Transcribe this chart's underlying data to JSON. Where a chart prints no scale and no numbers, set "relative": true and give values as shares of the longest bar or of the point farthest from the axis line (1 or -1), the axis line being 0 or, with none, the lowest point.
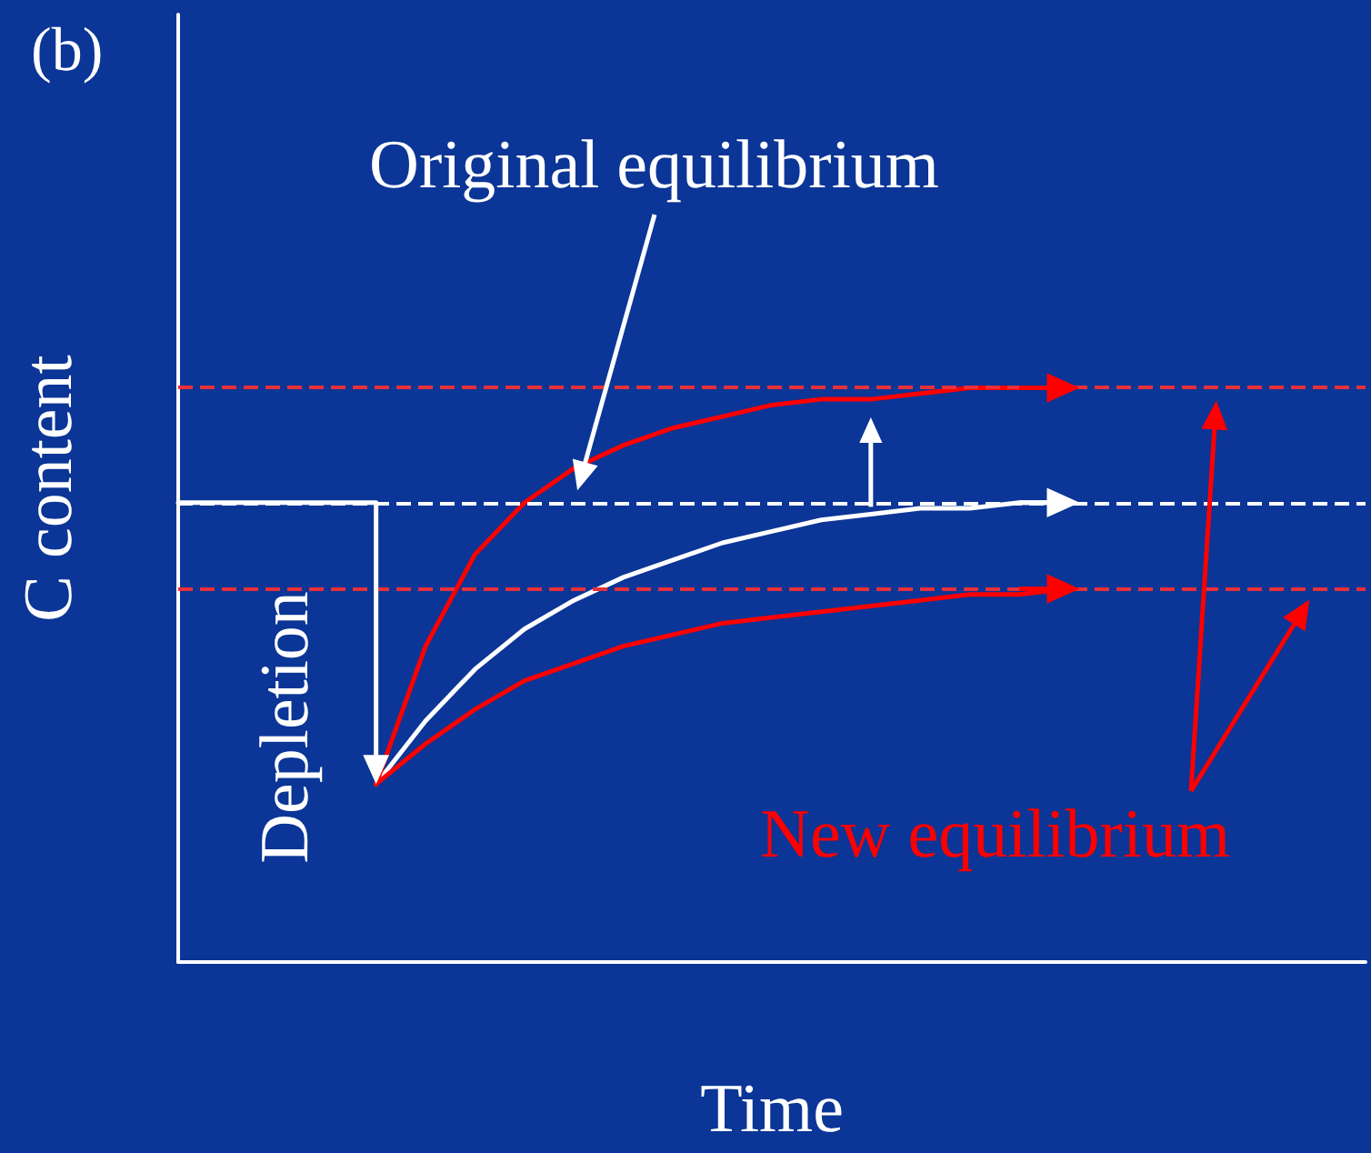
{
  "chart_data": {
    "type": "line",
    "title": "(b)",
    "xlabel": "Time",
    "ylabel": "C content",
    "relative": true,
    "categories": [
      null,
      null,
      null,
      null,
      null,
      null,
      null,
      null,
      null,
      null,
      null,
      null,
      null,
      null,
      null,
      null,
      null,
      null,
      null,
      null,
      null,
      null,
      null,
      null,
      null
    ],
    "series": [
      {
        "color": "#ffffff",
        "line_style": "solid",
        "values": [
          0.8,
          0.8,
          0.8,
          0.8,
          0.8,
          null,
          null,
          null,
          null,
          null,
          null,
          null,
          null,
          null,
          null,
          null,
          null,
          null,
          null,
          null,
          null,
          null,
          null,
          null,
          null
        ]
      },
      {
        "color": "#ffffff",
        "values": [
          null,
          null,
          null,
          null,
          0.31,
          0.42,
          0.51,
          0.58,
          0.63,
          0.67,
          0.7,
          0.73,
          0.75,
          0.77,
          0.78,
          0.79,
          0.79,
          0.8,
          0.8,
          null,
          null,
          null,
          null,
          null,
          null
        ]
      },
      {
        "color": "#ff0000",
        "values": [
          null,
          null,
          null,
          null,
          0.31,
          0.55,
          0.71,
          0.8,
          0.86,
          0.9,
          0.93,
          0.95,
          0.97,
          0.98,
          0.98,
          0.99,
          1,
          1,
          1,
          null,
          null,
          null,
          null,
          null,
          null
        ]
      },
      {
        "color": "#ff0000",
        "values": [
          null,
          null,
          null,
          null,
          0.31,
          0.38,
          0.44,
          0.49,
          0.52,
          0.55,
          0.57,
          0.59,
          0.6,
          0.61,
          0.62,
          0.63,
          0.64,
          0.64,
          0.65,
          null,
          null,
          null,
          null,
          null,
          null
        ]
      }
    ],
    "ref_lines": [
      {
        "axis": "y",
        "value": 0.8,
        "color": "#ffffff",
        "line_style": "dashed"
      },
      {
        "axis": "y",
        "value": 1,
        "color": "#e8303a",
        "line_style": "dashed"
      },
      {
        "axis": "y",
        "value": 0.65,
        "color": "#e8303a",
        "line_style": "dashed"
      }
    ],
    "annotations": [
      "Original equilibrium",
      "New equilibrium",
      "Depletion"
    ],
    "grid": false
  }
}
